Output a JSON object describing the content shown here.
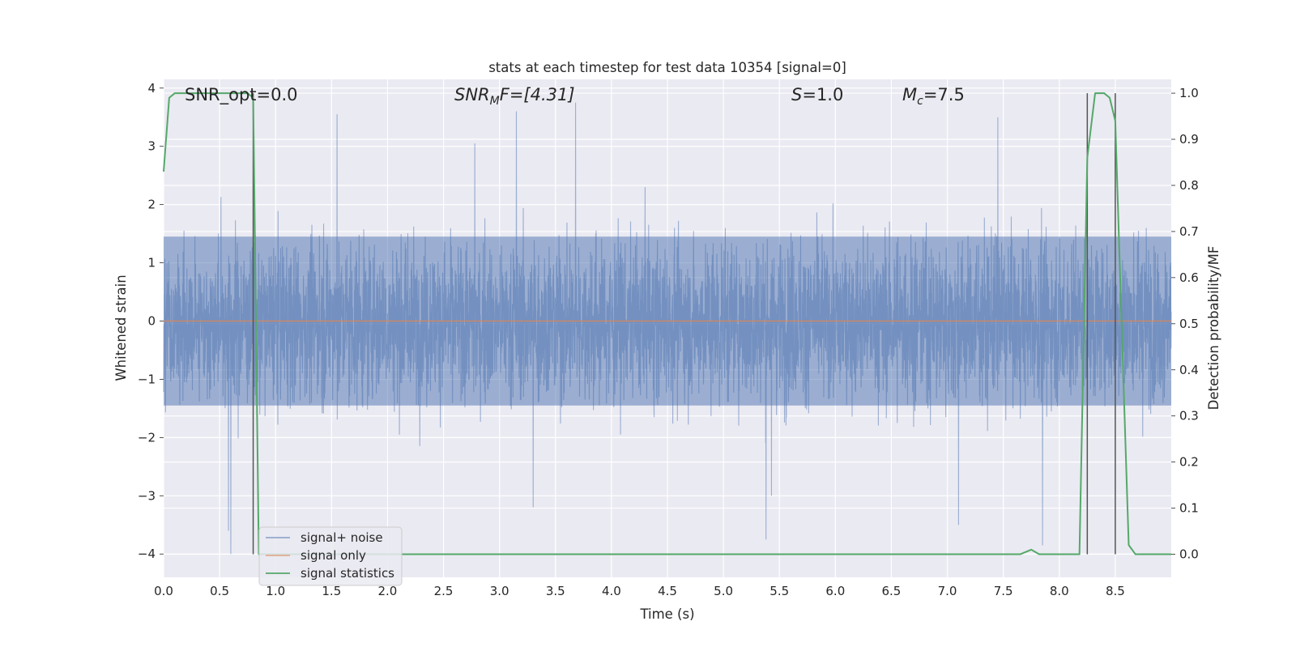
{
  "chart_data": {
    "type": "line",
    "title": "stats at each timestep for test data 10354 [signal=0]",
    "xlabel": "Time (s)",
    "ylabel": "Whitened strain",
    "ylabel_right": "Detection probability/MF",
    "xlim": [
      0.0,
      9.0
    ],
    "ylim": [
      -4.4,
      4.15
    ],
    "ylim_right": [
      -0.05,
      1.03
    ],
    "x_ticks": [
      "0.0",
      "0.5",
      "1.0",
      "1.5",
      "2.0",
      "2.5",
      "3.0",
      "3.5",
      "4.0",
      "4.5",
      "5.0",
      "5.5",
      "6.0",
      "6.5",
      "7.0",
      "7.5",
      "8.0",
      "8.5"
    ],
    "x_tick_values": [
      0.0,
      0.5,
      1.0,
      1.5,
      2.0,
      2.5,
      3.0,
      3.5,
      4.0,
      4.5,
      5.0,
      5.5,
      6.0,
      6.5,
      7.0,
      7.5,
      8.0,
      8.5
    ],
    "y_ticks": [
      "−4",
      "−3",
      "−2",
      "−1",
      "0",
      "1",
      "2",
      "3",
      "4"
    ],
    "y_tick_values": [
      -4,
      -3,
      -2,
      -1,
      0,
      1,
      2,
      3,
      4
    ],
    "y_ticks_right": [
      "0.0",
      "0.1",
      "0.2",
      "0.3",
      "0.4",
      "0.5",
      "0.6",
      "0.7",
      "0.8",
      "0.9",
      "1.0"
    ],
    "y_tick_values_right": [
      0.0,
      0.1,
      0.2,
      0.3,
      0.4,
      0.5,
      0.6,
      0.7,
      0.8,
      0.9,
      1.0
    ],
    "annotations": {
      "snr_opt": "SNR_opt=0.0",
      "snr_mf_sym": "SNR",
      "snr_mf_sub": "M",
      "snr_mf_rest": "F=[4.31]",
      "s_sym": "S",
      "s_rest": "=1.0",
      "mc_sym": "M",
      "mc_sub": "c",
      "mc_rest": "=7.5"
    },
    "vlines_x": [
      0.8,
      8.25,
      8.5
    ],
    "series": [
      {
        "name": "signal+ noise",
        "axis": "left",
        "color": "#4c72b0",
        "kind": "noise",
        "x_range": [
          0.0,
          9.0
        ],
        "envelope_typical": [
          -1.5,
          1.5
        ],
        "extremes": [
          {
            "x": 0.6,
            "y": -4.0
          },
          {
            "x": 0.58,
            "y": -3.6
          },
          {
            "x": 1.55,
            "y": 3.55
          },
          {
            "x": 2.78,
            "y": 3.05
          },
          {
            "x": 3.15,
            "y": 3.6
          },
          {
            "x": 3.3,
            "y": -3.2
          },
          {
            "x": 3.68,
            "y": 3.75
          },
          {
            "x": 5.38,
            "y": -3.75
          },
          {
            "x": 5.43,
            "y": -3.0
          },
          {
            "x": 7.1,
            "y": -3.5
          },
          {
            "x": 7.45,
            "y": 3.5
          },
          {
            "x": 7.85,
            "y": -3.85
          }
        ]
      },
      {
        "name": "signal only",
        "axis": "left",
        "color": "#dd8452",
        "x": [
          0.0,
          9.0
        ],
        "y": [
          0.0,
          0.0
        ]
      },
      {
        "name": "signal statistics",
        "axis": "right",
        "color": "#55a868",
        "x": [
          0.0,
          0.05,
          0.1,
          0.2,
          0.3,
          0.4,
          0.5,
          0.6,
          0.7,
          0.75,
          0.8,
          0.85,
          0.9,
          1.0,
          2.0,
          3.0,
          4.0,
          5.0,
          6.0,
          7.0,
          7.5,
          7.65,
          7.75,
          7.82,
          7.9,
          8.0,
          8.1,
          8.18,
          8.25,
          8.32,
          8.4,
          8.45,
          8.5,
          8.55,
          8.62,
          8.68,
          8.75,
          8.85,
          9.0
        ],
        "y": [
          0.83,
          0.99,
          1.0,
          1.0,
          1.0,
          1.0,
          1.0,
          1.0,
          1.0,
          1.0,
          0.99,
          0.0,
          0.0,
          0.0,
          0.0,
          0.0,
          0.0,
          0.0,
          0.0,
          0.0,
          0.0,
          0.0,
          0.01,
          0.0,
          0.0,
          0.0,
          0.0,
          0.0,
          0.86,
          1.0,
          1.0,
          0.99,
          0.94,
          0.55,
          0.02,
          0.0,
          0.0,
          0.0,
          0.0
        ]
      }
    ],
    "legend": {
      "placement": "lower-left",
      "entries": [
        "signal+ noise",
        "signal only",
        "signal statistics"
      ]
    }
  }
}
